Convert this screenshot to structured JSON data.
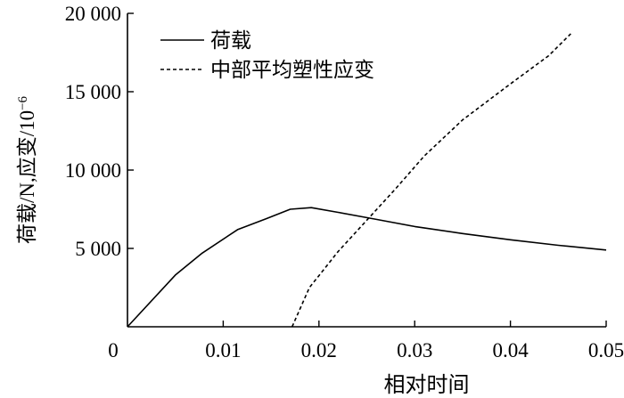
{
  "chart_data": {
    "type": "line",
    "title": "",
    "xlabel": "相对时间",
    "ylabel": "荷载/N,应变/10",
    "ylabel_exponent": "−6",
    "xlim": [
      0,
      0.05
    ],
    "ylim": [
      0,
      20000
    ],
    "x_ticks": [
      {
        "value": 0,
        "label": "0"
      },
      {
        "value": 0.01,
        "label": "0.01"
      },
      {
        "value": 0.02,
        "label": "0.02"
      },
      {
        "value": 0.03,
        "label": "0.03"
      },
      {
        "value": 0.04,
        "label": "0.04"
      },
      {
        "value": 0.05,
        "label": "0.05"
      }
    ],
    "y_ticks": [
      {
        "value": 5000,
        "label": "5 000"
      },
      {
        "value": 10000,
        "label": "10 000"
      },
      {
        "value": 15000,
        "label": "15 000"
      },
      {
        "value": 20000,
        "label": "20 000"
      }
    ],
    "grid": false,
    "legend": "top-left",
    "series": [
      {
        "name": "荷载",
        "style": "solid",
        "color": "#000000",
        "points": [
          [
            0,
            0
          ],
          [
            0.005,
            3300
          ],
          [
            0.0078,
            4700
          ],
          [
            0.0115,
            6200
          ],
          [
            0.0145,
            6900
          ],
          [
            0.017,
            7500
          ],
          [
            0.0192,
            7600
          ],
          [
            0.022,
            7300
          ],
          [
            0.026,
            6850
          ],
          [
            0.03,
            6400
          ],
          [
            0.035,
            5950
          ],
          [
            0.04,
            5550
          ],
          [
            0.045,
            5200
          ],
          [
            0.05,
            4900
          ]
        ]
      },
      {
        "name": "中部平均塑性应变",
        "style": "dashed",
        "color": "#000000",
        "points": [
          [
            0.0172,
            0
          ],
          [
            0.019,
            2500
          ],
          [
            0.022,
            4800
          ],
          [
            0.025,
            6800
          ],
          [
            0.028,
            8800
          ],
          [
            0.031,
            10900
          ],
          [
            0.035,
            13200
          ],
          [
            0.04,
            15500
          ],
          [
            0.044,
            17300
          ],
          [
            0.0463,
            18700
          ]
        ]
      }
    ]
  }
}
